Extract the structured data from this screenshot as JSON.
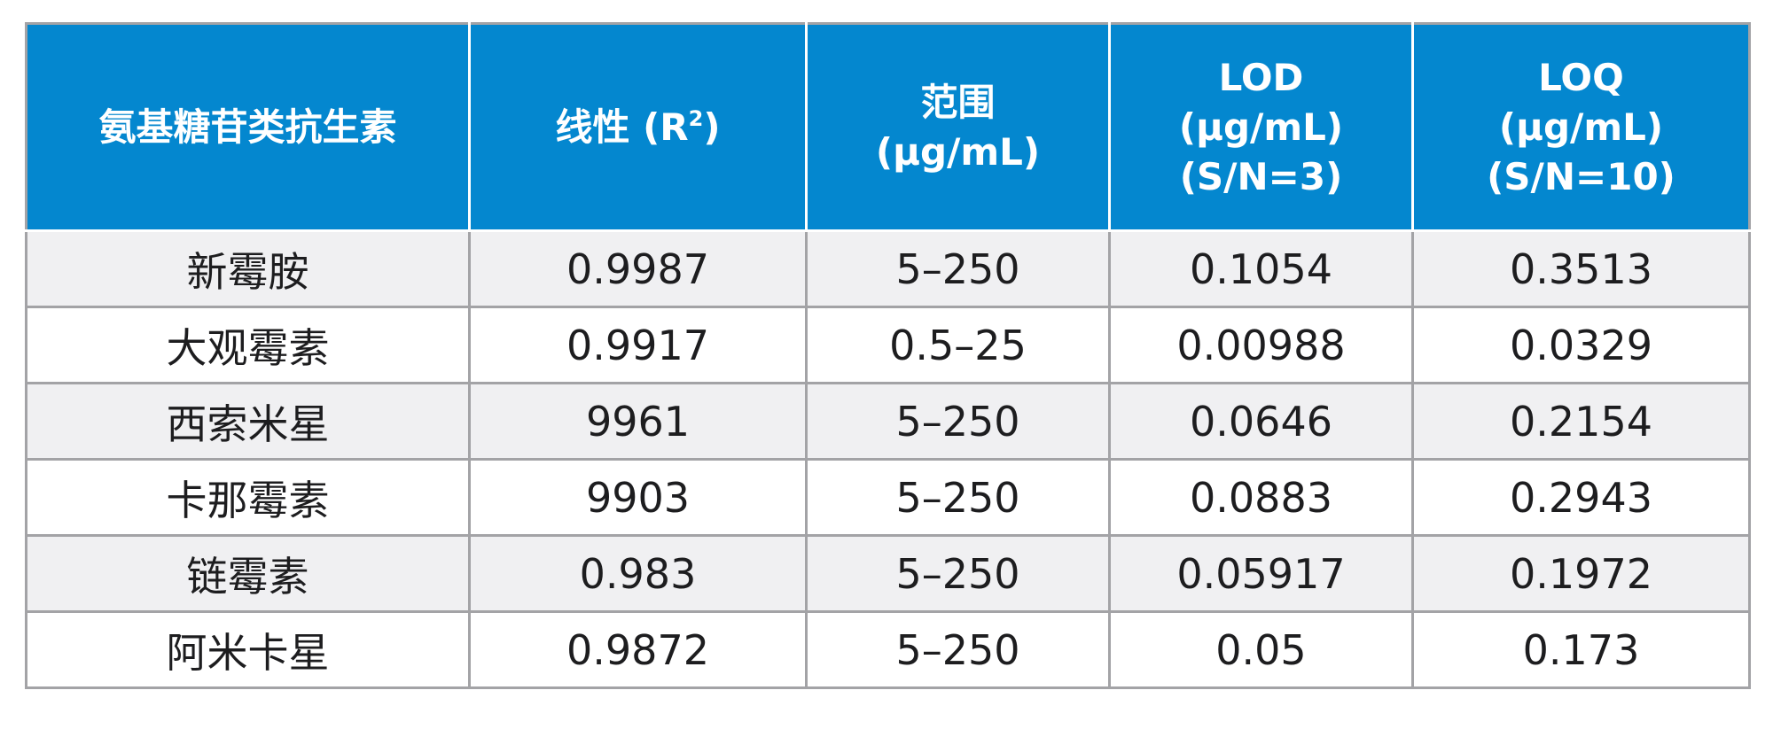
{
  "header": {
    "col1": "氨基糖苷类抗生素",
    "col2_text": "线性 (R",
    "col2_sup": "2",
    "col2_close": ")",
    "col3_line1": "范围",
    "col3_line2": "(µg/mL)",
    "col4_line1": "LOD",
    "col4_line2": "(µg/mL)",
    "col4_line3": "(S/N=3)",
    "col5_line1": "LOQ",
    "col5_line2": "(µg/mL)",
    "col5_line3": "(S/N=10)"
  },
  "rows": [
    {
      "name": "新霉胺",
      "linearity": "0.9987",
      "range": "5–250",
      "lod": "0.1054",
      "loq": "0.3513"
    },
    {
      "name": "大观霉素",
      "linearity": "0.9917",
      "range": "0.5–25",
      "lod": "0.00988",
      "loq": "0.0329"
    },
    {
      "name": "西索米星",
      "linearity": "9961",
      "range": "5–250",
      "lod": "0.0646",
      "loq": "0.2154"
    },
    {
      "name": "卡那霉素",
      "linearity": "9903",
      "range": "5–250",
      "lod": "0.0883",
      "loq": "0.2943"
    },
    {
      "name": "链霉素",
      "linearity": "0.983",
      "range": "5–250",
      "lod": "0.05917",
      "loq": "0.1972"
    },
    {
      "name": "阿米卡星",
      "linearity": "0.9872",
      "range": "5–250",
      "lod": "0.05",
      "loq": "0.173"
    }
  ],
  "colors": {
    "header_bg": "#0487cf",
    "header_text": "#ffffff",
    "row_alt_bg": "#f0f0f2",
    "border": "#a3a3a6"
  }
}
